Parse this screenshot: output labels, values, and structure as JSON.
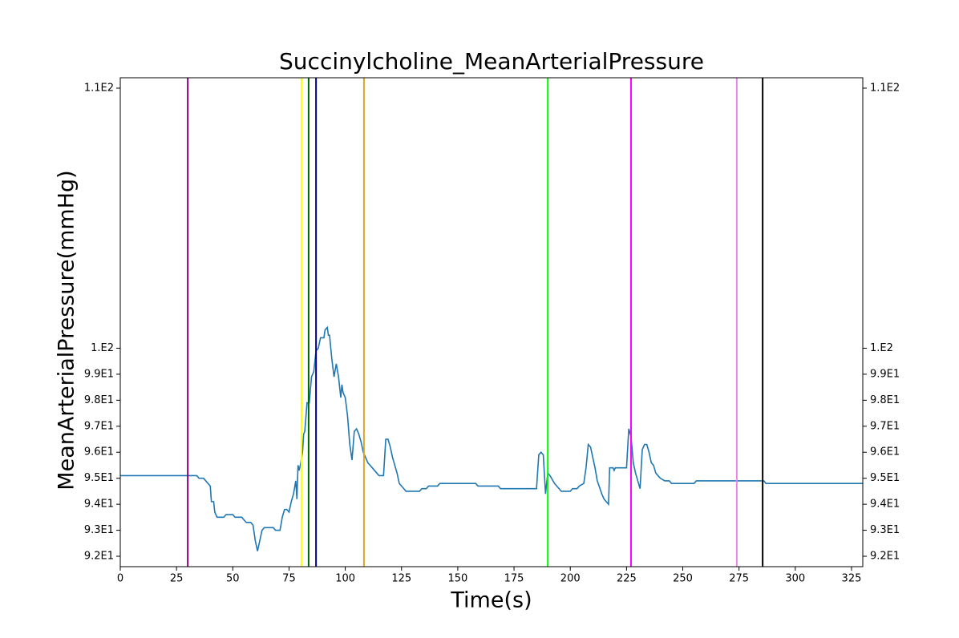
{
  "chart_data": {
    "type": "line",
    "title": "Succinylcholine_MeanArterialPressure",
    "x_label": "Time(s)",
    "y_label": "MeanArterialPressure(mmHg)",
    "xlim": [
      0,
      330
    ],
    "xticks": [
      0,
      25,
      50,
      75,
      100,
      125,
      150,
      175,
      200,
      225,
      250,
      275,
      300,
      325
    ],
    "ylim": [
      91.6,
      110.4
    ],
    "yticks": [
      {
        "value": 92,
        "label": "9.2E1"
      },
      {
        "value": 93,
        "label": "9.3E1"
      },
      {
        "value": 94,
        "label": "9.4E1"
      },
      {
        "value": 95,
        "label": "9.5E1"
      },
      {
        "value": 96,
        "label": "9.6E1"
      },
      {
        "value": 97,
        "label": "9.7E1"
      },
      {
        "value": 98,
        "label": "9.8E1"
      },
      {
        "value": 99,
        "label": "9.9E1"
      },
      {
        "value": 100,
        "label": "1.E2"
      },
      {
        "value": 110,
        "label": "1.1E2"
      }
    ],
    "series": [
      {
        "color": "#1f77b4",
        "x": [
          0,
          34,
          35,
          37,
          38,
          39,
          40,
          40.5,
          41.5,
          42,
          43,
          46,
          47,
          50,
          51,
          54,
          55,
          56,
          58,
          59,
          60,
          61,
          62,
          63,
          64,
          68,
          69,
          71,
          72,
          73,
          74,
          75,
          76,
          77,
          78,
          78.5,
          79,
          79.5,
          80,
          81,
          81.5,
          82,
          83,
          84,
          85,
          86,
          87,
          88,
          89,
          90.5,
          91,
          92,
          92.5,
          93,
          94,
          95,
          96,
          97,
          97.5,
          98,
          98.5,
          99,
          100,
          101,
          102,
          103,
          104,
          105,
          106,
          107,
          108,
          109,
          110,
          112,
          114,
          115,
          117,
          118,
          119,
          120,
          121,
          123,
          124,
          126,
          127,
          133,
          134,
          136,
          137,
          141,
          142,
          158,
          159,
          168,
          169,
          185,
          186,
          187,
          188,
          189,
          190,
          191,
          193,
          195,
          196,
          200,
          201,
          203,
          204,
          206,
          207,
          208,
          209,
          210,
          211,
          212,
          214,
          215,
          216,
          217,
          217.5,
          219,
          219.5,
          220,
          225,
          226,
          227,
          228,
          229,
          230,
          231,
          232,
          233,
          234,
          235,
          236,
          237,
          238,
          239,
          240,
          242,
          244,
          245,
          255,
          256,
          286,
          287,
          330
        ],
        "values": [
          95.1,
          95.1,
          95.0,
          95.0,
          94.9,
          94.8,
          94.7,
          94.1,
          94.1,
          93.7,
          93.5,
          93.5,
          93.6,
          93.6,
          93.5,
          93.5,
          93.4,
          93.3,
          93.3,
          93.2,
          92.6,
          92.2,
          92.6,
          93.0,
          93.1,
          93.1,
          93.0,
          93.0,
          93.5,
          93.8,
          93.8,
          93.7,
          94.1,
          94.4,
          94.9,
          94.2,
          95.5,
          95.3,
          95.5,
          96.0,
          96.7,
          96.8,
          97.9,
          97.9,
          98.9,
          99.1,
          99.9,
          100.0,
          100.4,
          100.4,
          100.7,
          100.8,
          100.5,
          100.5,
          99.6,
          98.9,
          99.4,
          98.9,
          98.5,
          98.1,
          98.6,
          98.3,
          98.1,
          97.4,
          96.3,
          95.7,
          96.8,
          96.9,
          96.7,
          96.4,
          96.0,
          95.8,
          95.6,
          95.4,
          95.2,
          95.1,
          95.1,
          96.5,
          96.5,
          96.2,
          95.8,
          95.2,
          94.8,
          94.6,
          94.5,
          94.5,
          94.6,
          94.6,
          94.7,
          94.7,
          94.8,
          94.8,
          94.7,
          94.7,
          94.6,
          94.6,
          95.9,
          96.0,
          95.9,
          94.4,
          95.2,
          95.1,
          94.8,
          94.6,
          94.5,
          94.5,
          94.6,
          94.6,
          94.7,
          94.8,
          95.4,
          96.3,
          96.2,
          95.8,
          95.4,
          94.9,
          94.4,
          94.2,
          94.1,
          94.0,
          95.4,
          95.4,
          95.3,
          95.4,
          95.4,
          96.9,
          96.6,
          95.6,
          95.2,
          94.9,
          94.6,
          96.1,
          96.3,
          96.3,
          96.0,
          95.6,
          95.5,
          95.2,
          95.1,
          95.0,
          94.9,
          94.9,
          94.8,
          94.8,
          94.9,
          94.9,
          94.8,
          94.8
        ]
      }
    ],
    "vlines": [
      {
        "x": 30,
        "color": "#800080"
      },
      {
        "x": 80.5,
        "color": "#ffff00"
      },
      {
        "x": 83.7,
        "color": "#006400"
      },
      {
        "x": 87,
        "color": "#00008b"
      },
      {
        "x": 108.3,
        "color": "#daa520"
      },
      {
        "x": 190,
        "color": "#00ff00"
      },
      {
        "x": 227,
        "color": "#ff00ff"
      },
      {
        "x": 274,
        "color": "#ee82ee"
      },
      {
        "x": 285.5,
        "color": "#000000"
      }
    ]
  }
}
